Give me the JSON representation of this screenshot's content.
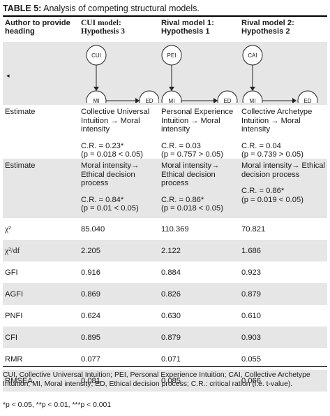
{
  "caption": {
    "label": "TABLE 5:",
    "text": " Analysis of competing structural models."
  },
  "headers": {
    "col1": "Author to provide heading",
    "col2": "CUI model: Hypothesis 3",
    "col3": "Rival model 1: Hypothesis 1",
    "col4": "Rival model 2: Hypothesis 2"
  },
  "left_arrow": "◂",
  "diagrams": [
    {
      "top": "CUI",
      "mid": "MI",
      "right": "ED"
    },
    {
      "top": "PEI",
      "mid": "MI",
      "right": "ED"
    },
    {
      "top": "CAI",
      "mid": "MI",
      "right": "ED"
    }
  ],
  "rows": {
    "estimate1": {
      "label": "Estimate",
      "c2": {
        "path": "Collective Universal Intuition → Moral intensity",
        "cr": "C.R. = 0.23*",
        "p": "(p = 0.018 < 0.05)"
      },
      "c3": {
        "path": "Personal Experience Intuition → Moral intensity",
        "cr": "C.R. = 0.03",
        "p": "(p = 0.757 > 0.05)"
      },
      "c4": {
        "path": "Collective Archetype Intuition → Moral intensity",
        "cr": "C.R. = 0.04",
        "p": "(p = 0.739 > 0.05)"
      }
    },
    "estimate2": {
      "label": "Estimate",
      "c2": {
        "path": "Moral intensity→ Ethical decision process",
        "cr": "C.R. = 0.84*",
        "p": "(p = 0.01 < 0.05)"
      },
      "c3": {
        "path": "Moral intensity→ Ethical decision process",
        "cr": "C.R. = 0.86*",
        "p": "(p = 0.018 < 0.05)"
      },
      "c4": {
        "path": "Moral intensity→ Ethical decision process",
        "cr": "C.R. = 0.86*",
        "p": "(p = 0.019 < 0.05)"
      }
    },
    "stats": [
      {
        "label": "χ²",
        "v": [
          "85.040",
          "110.369",
          "70.821"
        ]
      },
      {
        "label": "χ²/df",
        "v": [
          "2.205",
          "2.122",
          "1.686"
        ]
      },
      {
        "label": "GFI",
        "v": [
          "0.916",
          "0.884",
          "0.923"
        ]
      },
      {
        "label": "AGFI",
        "v": [
          "0.869",
          "0.826",
          "0.879"
        ]
      },
      {
        "label": "PNFI",
        "v": [
          "0.624",
          "0.630",
          "0.610"
        ]
      },
      {
        "label": "CFI",
        "v": [
          "0.895",
          "0.879",
          "0.903"
        ]
      },
      {
        "label": "RMR",
        "v": [
          "0.077",
          "0.071",
          "0.055"
        ]
      },
      {
        "label": "RMSEA",
        "v": [
          "0.081",
          "0.085",
          "0.066"
        ]
      }
    ]
  },
  "footnote": {
    "abbrev": "CUI, Collective Universal Intuition; PEI, Personal Experience Intuition; CAI, Collective Archetype Intuition; MI, Moral intensity; ED, Ethical decision process; C.R.: critical ration (i.e. t-value).",
    "sig": "*p < 0.05, **p < 0.01, ***p < 0.001"
  }
}
